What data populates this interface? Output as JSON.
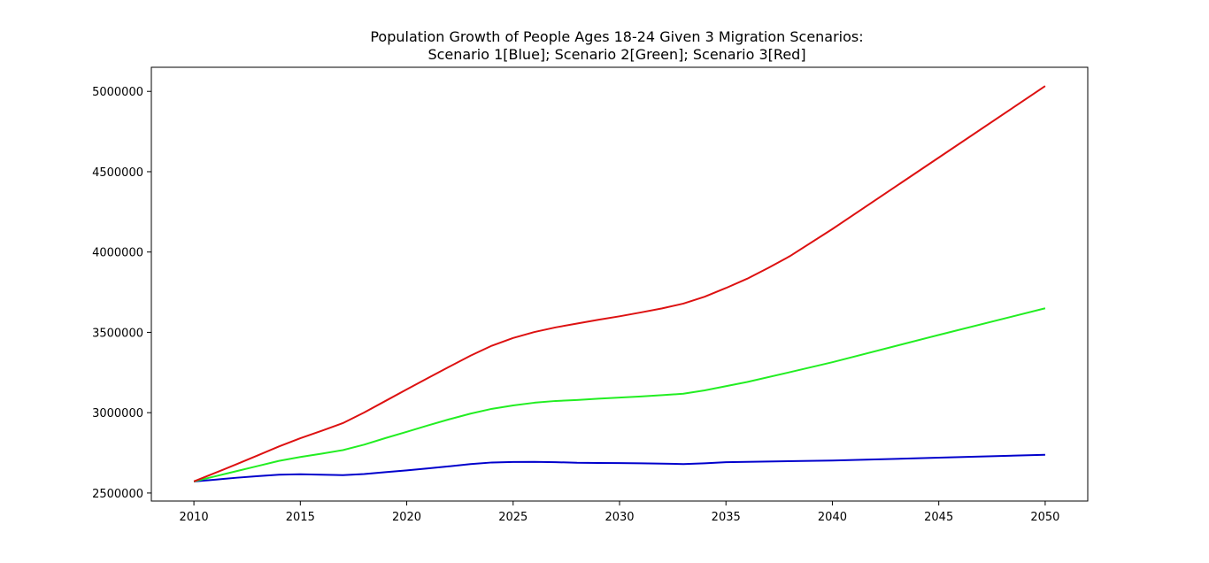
{
  "chart_data": {
    "type": "line",
    "title_lines": [
      "Population Growth of People Ages 18-24 Given 3 Migration Scenarios:",
      "Scenario 1[Blue]; Scenario 2[Green]; Scenario 3[Red]"
    ],
    "xlabel": "",
    "ylabel": "",
    "xlim": [
      2008,
      2052
    ],
    "ylim": [
      2450000,
      5150000
    ],
    "xticks": [
      2010,
      2015,
      2020,
      2025,
      2030,
      2035,
      2040,
      2045,
      2050
    ],
    "yticks": [
      2500000,
      3000000,
      3500000,
      4000000,
      4500000,
      5000000
    ],
    "grid": false,
    "series": [
      {
        "color": "#0000cc",
        "x": [
          2010,
          2011,
          2012,
          2013,
          2014,
          2015,
          2016,
          2017,
          2018,
          2019,
          2020,
          2021,
          2022,
          2023,
          2024,
          2025,
          2026,
          2027,
          2028,
          2029,
          2030,
          2031,
          2032,
          2033,
          2034,
          2035,
          2040,
          2045,
          2050
        ],
        "y": [
          2572000,
          2583000,
          2595000,
          2605000,
          2614000,
          2617000,
          2614000,
          2611000,
          2618000,
          2630000,
          2641000,
          2653000,
          2666000,
          2680000,
          2690000,
          2693000,
          2694000,
          2692000,
          2688000,
          2687000,
          2686000,
          2685000,
          2683000,
          2680000,
          2685000,
          2692000,
          2702000,
          2720000,
          2738000
        ]
      },
      {
        "color": "#22ee22",
        "x": [
          2010,
          2011,
          2012,
          2013,
          2014,
          2015,
          2016,
          2017,
          2018,
          2019,
          2020,
          2021,
          2022,
          2023,
          2024,
          2025,
          2026,
          2027,
          2028,
          2029,
          2030,
          2031,
          2032,
          2033,
          2034,
          2035,
          2036,
          2038,
          2040,
          2045,
          2050
        ],
        "y": [
          2572000,
          2604000,
          2636000,
          2668000,
          2700000,
          2724000,
          2745000,
          2767000,
          2801000,
          2842000,
          2881000,
          2921000,
          2959000,
          2994000,
          3024000,
          3045000,
          3062000,
          3073000,
          3079000,
          3087000,
          3094000,
          3101000,
          3109000,
          3118000,
          3139000,
          3165000,
          3191000,
          3252000,
          3314000,
          3484000,
          3650000
        ]
      },
      {
        "color": "#dd1111",
        "x": [
          2010,
          2011,
          2012,
          2013,
          2014,
          2015,
          2016,
          2017,
          2018,
          2019,
          2020,
          2021,
          2022,
          2023,
          2024,
          2025,
          2026,
          2027,
          2028,
          2029,
          2030,
          2031,
          2032,
          2033,
          2034,
          2035,
          2036,
          2037,
          2038,
          2040,
          2045,
          2050
        ],
        "y": [
          2572000,
          2625000,
          2679000,
          2734000,
          2790000,
          2841000,
          2887000,
          2935000,
          3001000,
          3073000,
          3145000,
          3216000,
          3286000,
          3355000,
          3417000,
          3465000,
          3502000,
          3531000,
          3555000,
          3578000,
          3600000,
          3624000,
          3649000,
          3679000,
          3722000,
          3776000,
          3834000,
          3902000,
          3974000,
          4143000,
          4588000,
          5033000
        ]
      }
    ]
  }
}
